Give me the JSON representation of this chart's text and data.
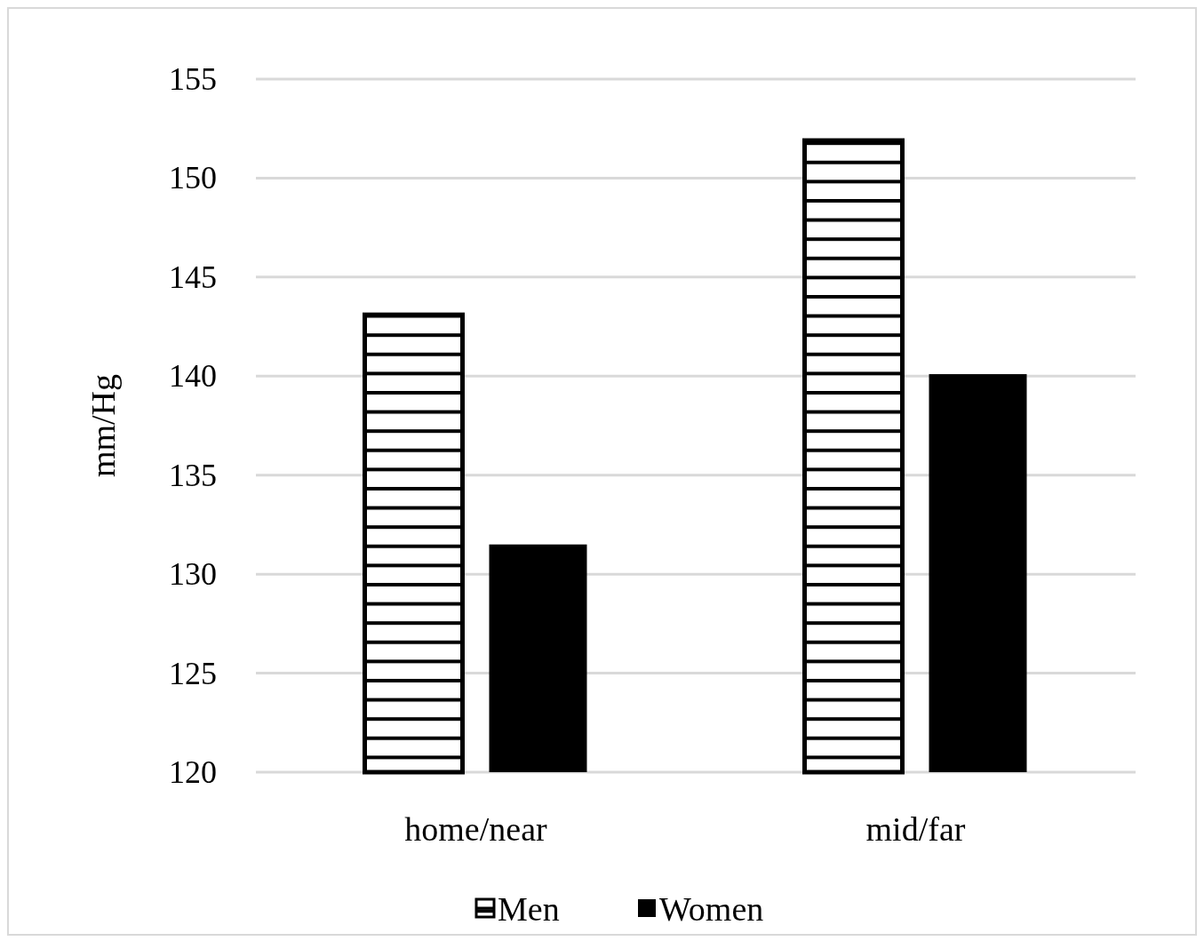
{
  "chart_data": {
    "type": "bar",
    "ylabel": "mm/Hg",
    "categories": [
      "home/near",
      "mid/far"
    ],
    "series": [
      {
        "name": "Men",
        "color": "#000000",
        "values": [
          143.1,
          151.9
        ]
      },
      {
        "name": "Women",
        "color": "#000000",
        "values": [
          131.5,
          140.1
        ]
      }
    ],
    "ylim": [
      120,
      155
    ],
    "yticks": [
      120,
      125,
      130,
      135,
      140,
      145,
      150,
      155
    ],
    "grid": "y",
    "legend": "bottom"
  }
}
